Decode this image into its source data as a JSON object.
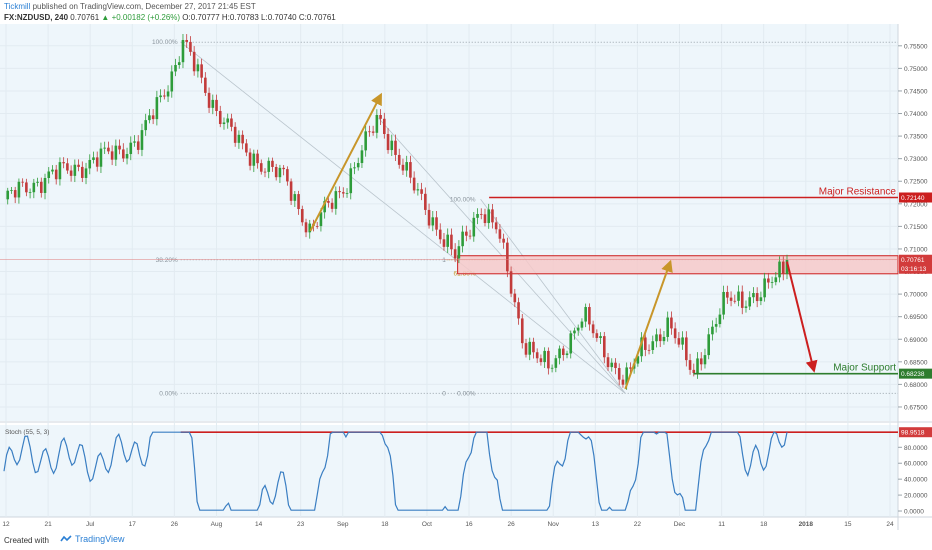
{
  "header": {
    "author": "Tickmill",
    "published": "published on TradingView.com, December 27, 2017 21:45 EST",
    "symbol": "FX:NZDUSD, 240",
    "last": "0.70761",
    "change": "+0.00182 (+0.26%)",
    "ohlc": "O:0.70777 H:0.70783 L:0.70740 C:0.70761"
  },
  "footer": {
    "created_with": "Created with",
    "brand": "TradingView"
  },
  "colors": {
    "up": "#2e9c3a",
    "down": "#c23b3b",
    "orange": "#c8962a",
    "red": "#cc1f1f",
    "green": "#2e7d2e",
    "stoch": "#3a7ec2",
    "zone": "#f6c9c9",
    "bg": "#eef6fb"
  },
  "chart_data": [
    {
      "type": "candlestick",
      "title": "NZDUSD 4H",
      "ylim": [
        0.673,
        0.7585
      ],
      "y_ticks": [
        "0.75500",
        "0.75000",
        "0.74500",
        "0.74000",
        "0.73500",
        "0.73000",
        "0.72500",
        "0.72000",
        "0.71500",
        "0.71000",
        "0.70500",
        "0.70000",
        "0.69500",
        "0.69000",
        "0.68500",
        "0.68000",
        "0.67500"
      ],
      "x_ticks": [
        "12",
        "21",
        "Jul",
        "17",
        "26",
        "Aug",
        "14",
        "23",
        "Sep",
        "18",
        "Oct",
        "16",
        "26",
        "Nov",
        "13",
        "22",
        "Dec",
        "11",
        "18",
        "2018",
        "15",
        "24"
      ],
      "price_path": [
        {
          "t": 0,
          "y": 0.721
        },
        {
          "t": 5,
          "y": 0.726
        },
        {
          "t": 10,
          "y": 0.729
        },
        {
          "t": 16,
          "y": 0.734
        },
        {
          "t": 20,
          "y": 0.75
        },
        {
          "t": 21,
          "y": 0.7558
        },
        {
          "t": 24,
          "y": 0.744
        },
        {
          "t": 28,
          "y": 0.732
        },
        {
          "t": 33,
          "y": 0.7255
        },
        {
          "t": 36,
          "y": 0.714
        },
        {
          "t": 40,
          "y": 0.724
        },
        {
          "t": 44,
          "y": 0.739
        },
        {
          "t": 48,
          "y": 0.724
        },
        {
          "t": 53,
          "y": 0.708
        },
        {
          "t": 56,
          "y": 0.7195
        },
        {
          "t": 58,
          "y": 0.714
        },
        {
          "t": 61,
          "y": 0.69
        },
        {
          "t": 64,
          "y": 0.683
        },
        {
          "t": 68,
          "y": 0.695
        },
        {
          "t": 71,
          "y": 0.686
        },
        {
          "t": 73,
          "y": 0.6805
        },
        {
          "t": 75,
          "y": 0.688
        },
        {
          "t": 78,
          "y": 0.693
        },
        {
          "t": 81,
          "y": 0.683
        },
        {
          "t": 85,
          "y": 0.699
        },
        {
          "t": 89,
          "y": 0.6995
        },
        {
          "t": 92,
          "y": 0.7076
        }
      ],
      "levels": [
        {
          "name": "Major Resistance",
          "value": 0.7214,
          "label": "0.72140",
          "color": "#cc1f1f"
        },
        {
          "name": "Major Support",
          "value": 0.68238,
          "label": "0.68238",
          "color": "#2e7d2e"
        }
      ],
      "current_price": {
        "value": 0.70761,
        "label": "0.70761",
        "timer": "03:16:13"
      },
      "resistance_zone": [
        0.7045,
        0.7085
      ],
      "fib_left": {
        "labels": [
          "100.00%",
          "38.20%",
          "0.00%"
        ],
        "values": [
          0.7558,
          0.7076,
          0.678
        ]
      },
      "fib_right": {
        "labels": [
          "100.00%",
          "61.80%",
          "0.00%"
        ],
        "values": [
          0.721,
          0.705,
          0.678
        ]
      },
      "fib_right_markers": [
        "1",
        "0"
      ],
      "annotations": [
        "Major Resistance",
        "Major Support"
      ]
    },
    {
      "type": "line",
      "title": "Stoch (55, 5, 3)",
      "ylim": [
        -5,
        108
      ],
      "y_ticks": [
        "80.0000",
        "60.0000",
        "40.0000",
        "20.0000",
        "0.0000"
      ],
      "current": {
        "value": 98.9518,
        "label": "98.9518"
      },
      "reference_line": 98.9518
    }
  ]
}
